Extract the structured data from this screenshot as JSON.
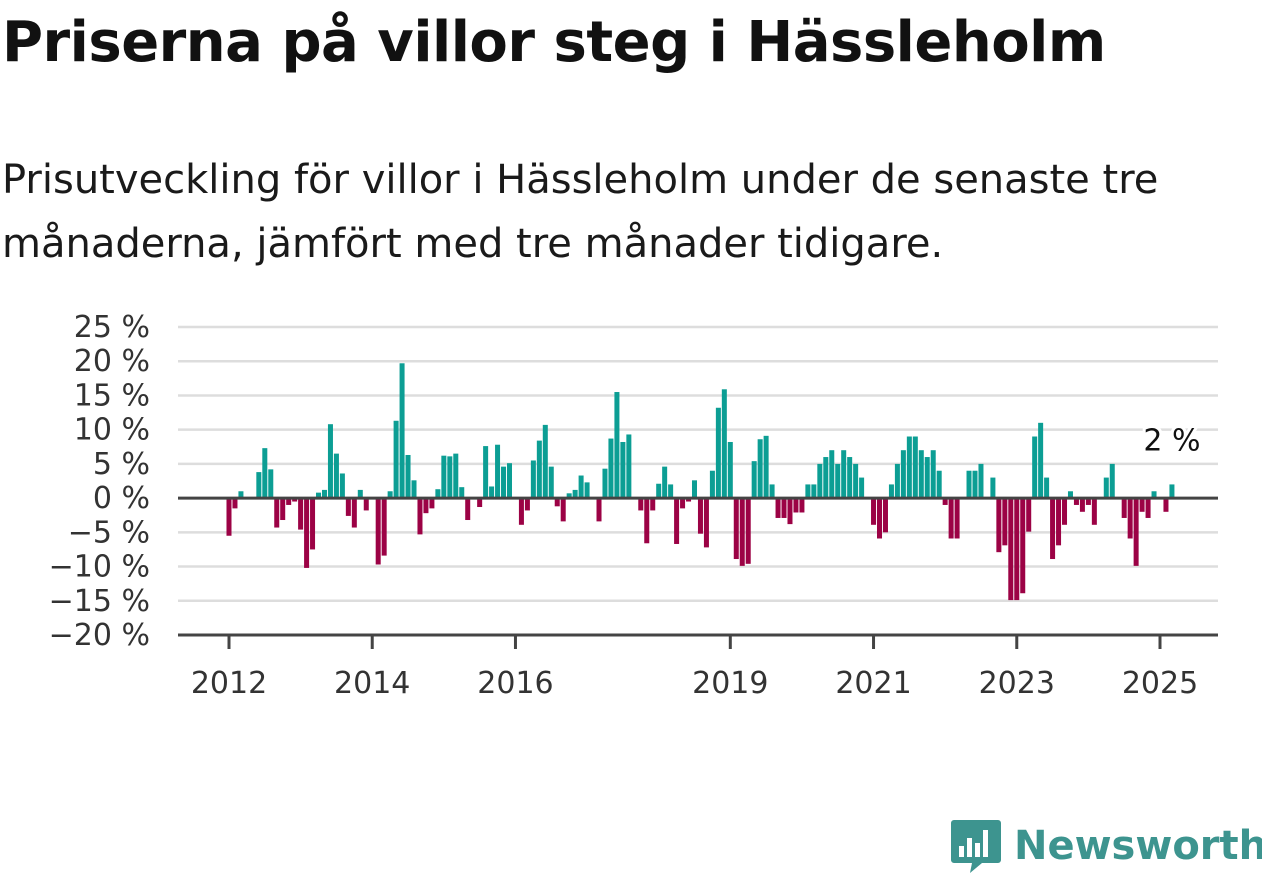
{
  "title": "Priserna på villor steg i Hässleholm",
  "subtitle": "Prisutveckling för villor i Hässleholm under de senaste tre månaderna, jämfört med tre månader tidigare.",
  "brand": "Newsworthy",
  "colors": {
    "positive": "#0c9e94",
    "negative": "#9c0245",
    "brand": "#3d948f",
    "grid": "#dddddd",
    "axis": "#444444"
  },
  "chart_data": {
    "type": "bar",
    "start": "2012-01",
    "frequency": "monthly",
    "ylim": [
      -20,
      25
    ],
    "yticks": [
      25,
      20,
      15,
      10,
      5,
      0,
      -5,
      -10,
      -15,
      -20
    ],
    "ytick_labels": [
      "25 %",
      "20 %",
      "15 %",
      "10 %",
      "5 %",
      "0 %",
      "−5 %",
      "−10 %",
      "−15 %",
      "−20 %"
    ],
    "xtick_labels": [
      "2012",
      "2014",
      "2016",
      "2019",
      "2021",
      "2023",
      "2025"
    ],
    "grid": true,
    "last_label": "2 %",
    "values": [
      -5.5,
      -1.5,
      1,
      0,
      0,
      3.8,
      7.3,
      4.2,
      -4.3,
      -3.2,
      -1,
      -0.5,
      -4.6,
      -10.2,
      -7.5,
      0.8,
      1.2,
      10.8,
      6.5,
      3.6,
      -2.6,
      -4.3,
      1.2,
      -1.8,
      0,
      -9.7,
      -8.4,
      1.0,
      11.3,
      19.7,
      6.3,
      2.6,
      -5.3,
      -2.2,
      -1.5,
      1.3,
      6.2,
      6.1,
      6.5,
      1.6,
      -3.2,
      0,
      -1.3,
      7.6,
      1.7,
      7.8,
      4.6,
      5.1,
      0,
      -3.9,
      -1.8,
      5.5,
      8.4,
      10.7,
      4.6,
      -1.2,
      -3.4,
      0.7,
      1.2,
      3.3,
      2.3,
      0,
      -3.4,
      4.3,
      8.7,
      15.5,
      8.2,
      9.3,
      0,
      -1.8,
      -6.6,
      -1.8,
      2.1,
      4.6,
      2.0,
      -6.7,
      -1.5,
      -0.5,
      2.6,
      -5.2,
      -7.2,
      4.0,
      13.2,
      15.9,
      8.2,
      -8.9,
      -9.9,
      -9.6,
      5.4,
      8.6,
      9.1,
      2.0,
      -2.9,
      -2.9,
      -3.8,
      -2.1,
      -2.1,
      2.0,
      2.0,
      5.0,
      6.0,
      7.0,
      5.0,
      7.0,
      6.0,
      5.0,
      3.0,
      0,
      -3.9,
      -5.9,
      -5.0,
      2.0,
      5.0,
      7.0,
      9.0,
      9.0,
      7.0,
      6.0,
      7.0,
      4.0,
      -1.0,
      -5.9,
      -5.9,
      0,
      4.0,
      4.0,
      5.0,
      0,
      3.0,
      -7.9,
      -6.9,
      -14.9,
      -14.9,
      -13.9,
      -4.9,
      9.0,
      11.0,
      3.0,
      -8.9,
      -6.9,
      -3.9,
      1.0,
      -1.0,
      -2.0,
      -1.0,
      -3.9,
      0,
      3.0,
      5.0,
      0,
      -2.9,
      -5.9,
      -9.9,
      -2.0,
      -2.9,
      1.0,
      0,
      -2.0,
      2.0
    ]
  }
}
